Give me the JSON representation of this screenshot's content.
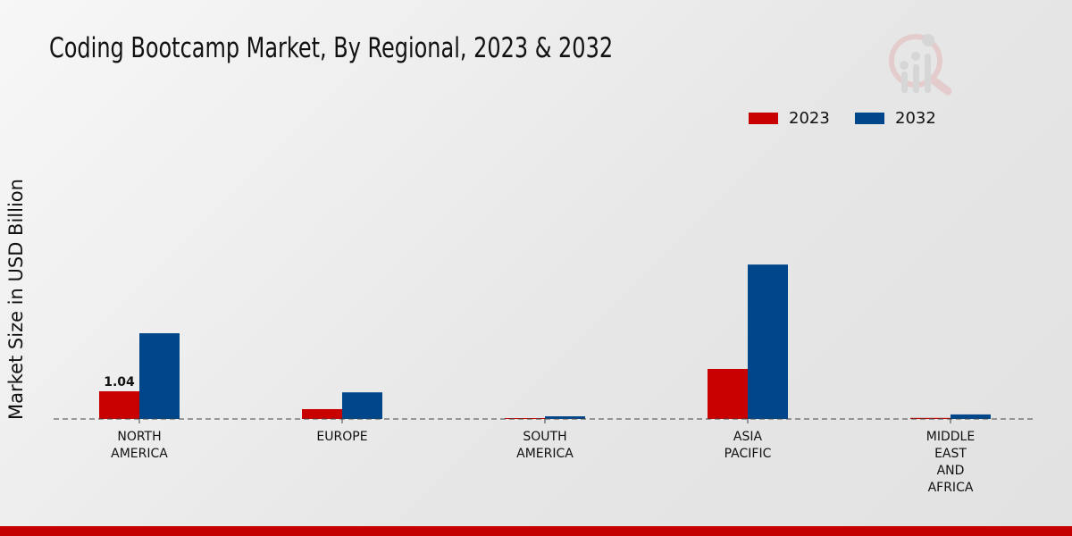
{
  "chart_data": {
    "type": "bar",
    "title": "Coding Bootcamp Market, By Regional, 2023 & 2032",
    "xlabel": "",
    "ylabel": "Market Size in USD Billion",
    "categories": [
      [
        "NORTH",
        "AMERICA"
      ],
      [
        "EUROPE"
      ],
      [
        "SOUTH",
        "AMERICA"
      ],
      [
        "ASIA",
        "PACIFIC"
      ],
      [
        "MIDDLE",
        "EAST",
        "AND",
        "AFRICA"
      ]
    ],
    "series": [
      {
        "name": "2023",
        "color": "#c80000",
        "values": [
          1.04,
          0.37,
          0.03,
          1.88,
          0.04
        ]
      },
      {
        "name": "2032",
        "color": "#00468b",
        "values": [
          3.22,
          1.0,
          0.1,
          5.8,
          0.17
        ]
      }
    ],
    "data_labels": [
      {
        "series": 0,
        "index": 0,
        "text": "1.04"
      }
    ],
    "ylim": [
      0,
      7.5
    ],
    "legend_position": "top-right",
    "grid": false
  },
  "colors": {
    "footer": "#c50000"
  }
}
